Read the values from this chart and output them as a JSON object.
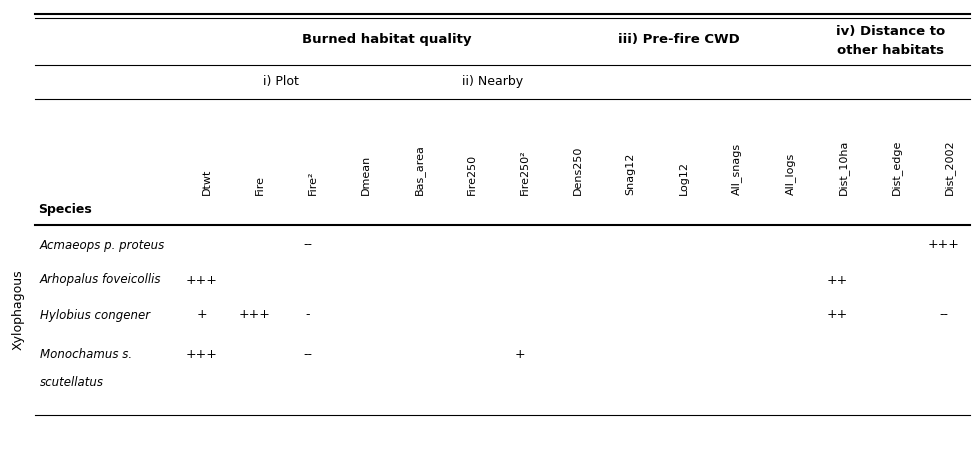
{
  "columns": [
    "Dtwt",
    "Fire",
    "Fire²",
    "Dmean",
    "Bas_area",
    "Fire250",
    "Fire250²",
    "Dens250",
    "Snag12",
    "Log12",
    "All_snags",
    "All_logs",
    "Dist_10ha",
    "Dist_edge",
    "Dist_2002"
  ],
  "row_group_label": "Xylophagous",
  "rows": [
    {
      "species": "Acmaeops p. proteus",
      "values": [
        "",
        "",
        "--",
        "",
        "",
        "",
        "",
        "",
        "",
        "",
        "",
        "",
        "",
        "",
        "+++"
      ]
    },
    {
      "species": "Arhopalus foveicollis",
      "values": [
        "+++",
        "",
        "",
        "",
        "",
        "",
        "",
        "",
        "",
        "",
        "",
        "",
        "++",
        "",
        ""
      ]
    },
    {
      "species": "Hylobius congener",
      "values": [
        "+",
        "+++",
        "-",
        "",
        "",
        "",
        "",
        "",
        "",
        "",
        "",
        "",
        "++",
        "",
        "--"
      ]
    },
    {
      "species": "Monochamus s.",
      "species2": "scutellatus",
      "values": [
        "+++",
        "",
        "--",
        "",
        "",
        "",
        "+",
        "",
        "",
        "",
        "",
        "",
        "",
        "",
        ""
      ]
    }
  ],
  "bg_color": "#ffffff",
  "text_color": "#000000",
  "line_color": "#000000"
}
